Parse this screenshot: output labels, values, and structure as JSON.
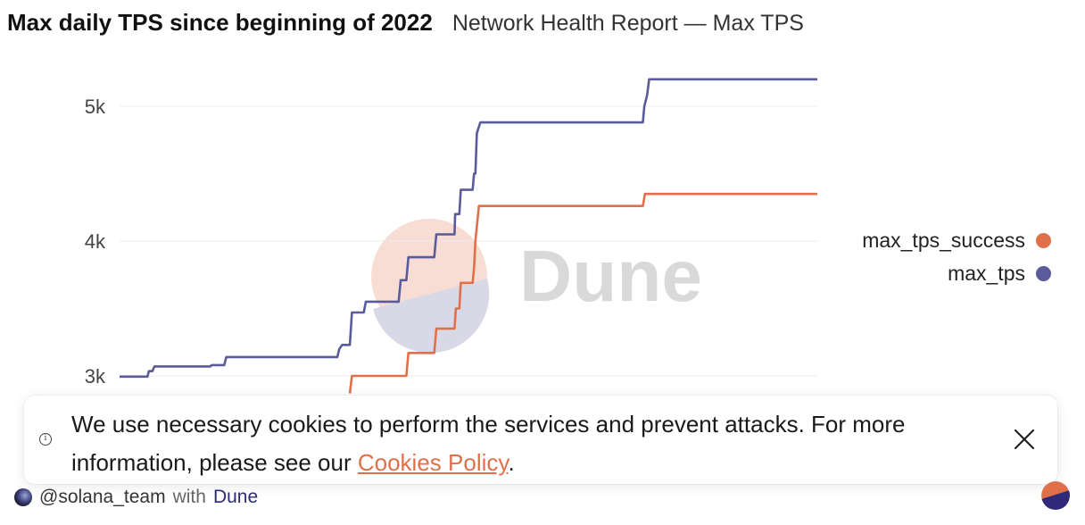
{
  "header": {
    "title": "Max daily TPS since beginning of 2022",
    "subtitle": "Network Health Report — Max TPS"
  },
  "watermark": {
    "text": "Dune"
  },
  "cookie_banner": {
    "text_before": "We use necessary cookies to perform the services and prevent attacks. For more information, please see our ",
    "link_text": "Cookies Policy",
    "text_after": "."
  },
  "footer": {
    "handle": "@solana_team",
    "with_text": "with",
    "brand": "Dune"
  },
  "colors": {
    "max_tps": "#5a5b9b",
    "max_tps_success": "#e0704a",
    "grid": "#ececec",
    "axis_text": "#444444"
  },
  "chart_data": {
    "type": "line",
    "title": "Max daily TPS since beginning of 2022",
    "subtitle": "Network Health Report — Max TPS",
    "xlabel": "",
    "ylabel": "",
    "x_range": [
      0,
      100
    ],
    "ylim": [
      2850,
      5260
    ],
    "y_ticks": [
      {
        "value": 3000,
        "label": "3k"
      },
      {
        "value": 4000,
        "label": "4k"
      },
      {
        "value": 5000,
        "label": "5k"
      }
    ],
    "grid": true,
    "legend_position": "right",
    "series": [
      {
        "name": "max_tps",
        "color": "#5a5b9b",
        "points": [
          [
            0,
            2995
          ],
          [
            4.0,
            2995
          ],
          [
            4.2,
            3035
          ],
          [
            4.7,
            3035
          ],
          [
            5.0,
            3070
          ],
          [
            13.0,
            3070
          ],
          [
            13.2,
            3080
          ],
          [
            15.0,
            3080
          ],
          [
            15.3,
            3140
          ],
          [
            31.2,
            3140
          ],
          [
            31.5,
            3200
          ],
          [
            31.9,
            3230
          ],
          [
            33.0,
            3230
          ],
          [
            33.3,
            3470
          ],
          [
            35.0,
            3470
          ],
          [
            35.3,
            3550
          ],
          [
            40.0,
            3550
          ],
          [
            40.3,
            3710
          ],
          [
            41.1,
            3710
          ],
          [
            41.4,
            3880
          ],
          [
            45.1,
            3880
          ],
          [
            45.4,
            4050
          ],
          [
            48.0,
            4050
          ],
          [
            48.1,
            4200
          ],
          [
            48.7,
            4200
          ],
          [
            48.9,
            4380
          ],
          [
            50.6,
            4380
          ],
          [
            50.8,
            4500
          ],
          [
            51.0,
            4500
          ],
          [
            51.2,
            4800
          ],
          [
            51.7,
            4880
          ],
          [
            75.0,
            4880
          ],
          [
            75.2,
            5000
          ],
          [
            75.6,
            5080
          ],
          [
            75.9,
            5200
          ],
          [
            100,
            5200
          ]
        ]
      },
      {
        "name": "max_tps_success",
        "color": "#e0704a",
        "points": [
          [
            33.0,
            2870
          ],
          [
            33.3,
            3000
          ],
          [
            41.1,
            3000
          ],
          [
            41.4,
            3170
          ],
          [
            45.1,
            3170
          ],
          [
            45.4,
            3350
          ],
          [
            48.0,
            3350
          ],
          [
            48.2,
            3500
          ],
          [
            48.7,
            3500
          ],
          [
            48.9,
            3690
          ],
          [
            50.6,
            3690
          ],
          [
            50.8,
            3800
          ],
          [
            51.0,
            4000
          ],
          [
            51.5,
            4260
          ],
          [
            75.0,
            4260
          ],
          [
            75.3,
            4350
          ],
          [
            100,
            4350
          ]
        ]
      }
    ]
  },
  "legend": {
    "items": [
      {
        "label": "max_tps_success",
        "color": "#e0704a"
      },
      {
        "label": "max_tps",
        "color": "#5a5b9b"
      }
    ]
  }
}
